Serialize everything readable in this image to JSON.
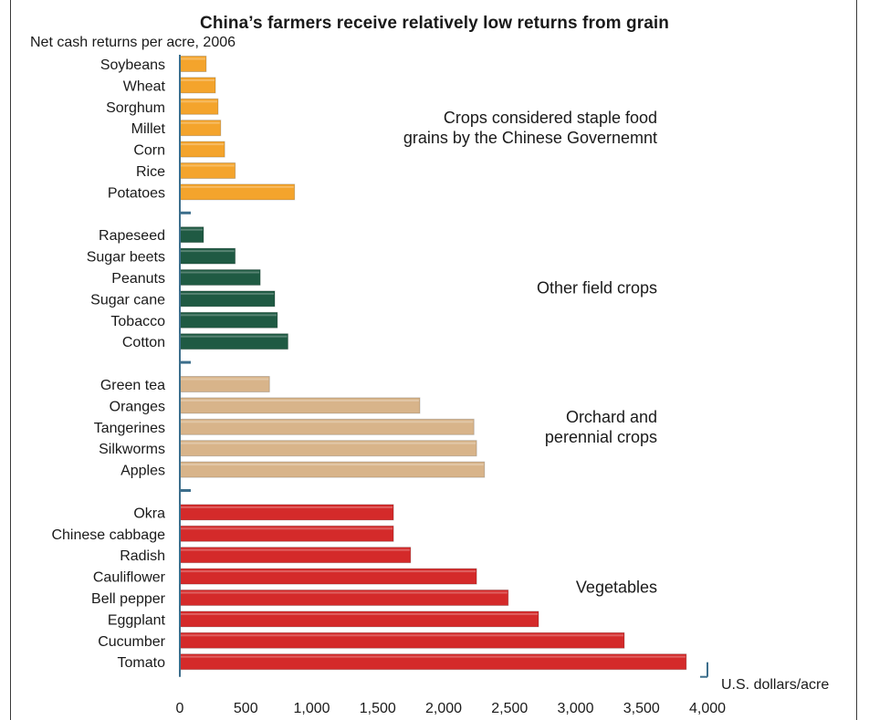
{
  "chart_data": {
    "type": "bar",
    "orientation": "horizontal",
    "title": "China’s farmers receive relatively low returns from grain",
    "subtitle": "Net cash returns per acre, 2006",
    "xlabel": "U.S. dollars/acre",
    "xlim": [
      0,
      4000
    ],
    "xticks": [
      "0",
      "500",
      "1,000",
      "1,500",
      "2,000",
      "2,500",
      "3,000",
      "3,500",
      "4,000"
    ],
    "grid": false,
    "groups": [
      {
        "name": "Crops considered staple food grains by the Chinese Governemnt",
        "label_lines": [
          "Crops considered staple food",
          "grains by the Chinese Governemnt"
        ],
        "color": "#f4a42c",
        "categories": [
          "Soybeans",
          "Wheat",
          "Sorghum",
          "Millet",
          "Corn",
          "Rice",
          "Potatoes"
        ],
        "values": [
          200,
          270,
          290,
          310,
          340,
          420,
          870
        ]
      },
      {
        "name": "Other field crops",
        "label_lines": [
          "Other field crops"
        ],
        "color": "#1f5a43",
        "categories": [
          "Rapeseed",
          "Sugar beets",
          "Peanuts",
          "Sugar cane",
          "Tobacco",
          "Cotton"
        ],
        "values": [
          180,
          420,
          610,
          720,
          740,
          820
        ]
      },
      {
        "name": "Orchard and perennial crops",
        "label_lines": [
          "Orchard and",
          "perennial crops"
        ],
        "color": "#d8b48a",
        "categories": [
          "Green tea",
          "Oranges",
          "Tangerines",
          "Silkworms",
          "Apples"
        ],
        "values": [
          680,
          1820,
          2230,
          2250,
          2310
        ]
      },
      {
        "name": "Vegetables",
        "label_lines": [
          "Vegetables"
        ],
        "color": "#d42a2a",
        "categories": [
          "Okra",
          "Chinese cabbage",
          "Radish",
          "Cauliflower",
          "Bell pepper",
          "Eggplant",
          "Cucumber",
          "Tomato"
        ],
        "values": [
          1620,
          1620,
          1750,
          2250,
          2490,
          2720,
          3370,
          3840
        ]
      }
    ]
  },
  "colors": {
    "axis": "#3c6e8c",
    "text": "#1a1a1a"
  }
}
